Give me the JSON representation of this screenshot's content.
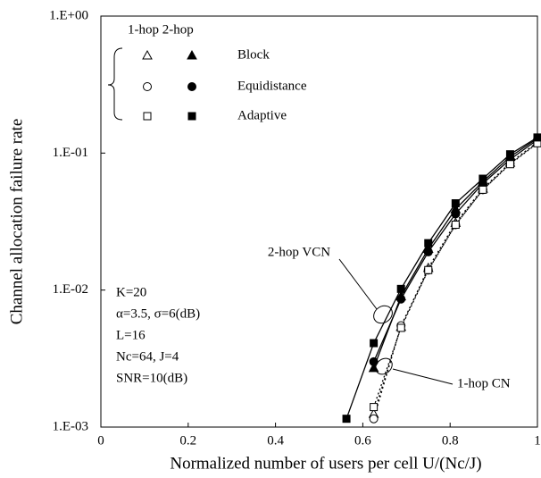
{
  "chart_data": {
    "type": "line",
    "yscale": "log",
    "xlabel": "Normalized number of users per cell U/(Nc/J)",
    "ylabel": "Channel allocation failure rate",
    "xlim": [
      0,
      1
    ],
    "xticks": [
      0,
      0.2,
      0.4,
      0.6,
      0.8,
      1
    ],
    "ylim": [
      0.001,
      1
    ],
    "yticks": [
      {
        "value": 1,
        "label": "1.E+00"
      },
      {
        "value": 0.1,
        "label": "1.E-01"
      },
      {
        "value": 0.01,
        "label": "1.E-02"
      },
      {
        "value": 0.001,
        "label": "1.E-03"
      }
    ],
    "legend_header": "1-hop 2-hop",
    "x": [
      0.5625,
      0.625,
      0.6875,
      0.75,
      0.8125,
      0.875,
      0.9375,
      1
    ],
    "series": [
      {
        "name": "Block",
        "marker": "triangle",
        "color": "#000",
        "one_hop": [
          null,
          0.00125,
          0.0054,
          0.0145,
          0.031,
          0.055,
          0.085,
          0.12
        ],
        "two_hop": [
          null,
          0.0027,
          0.009,
          0.02,
          0.039,
          0.062,
          0.094,
          0.128
        ]
      },
      {
        "name": "Equidistance",
        "marker": "circle",
        "color": "#000",
        "one_hop": [
          null,
          0.00115,
          0.0055,
          0.014,
          0.03,
          0.054,
          0.084,
          0.119
        ],
        "two_hop": [
          null,
          0.003,
          0.0086,
          0.019,
          0.036,
          0.06,
          0.09,
          0.125
        ]
      },
      {
        "name": "Adaptive",
        "marker": "square",
        "color": "#000",
        "one_hop": [
          null,
          0.0014,
          0.0053,
          0.014,
          0.03,
          0.054,
          0.083,
          0.118
        ],
        "two_hop": [
          0.00115,
          0.0041,
          0.0102,
          0.022,
          0.043,
          0.065,
          0.098,
          0.13
        ]
      }
    ],
    "annotations": [
      "2-hop VCN",
      "1-hop CN"
    ],
    "parameters": [
      "K=20",
      "α=3.5,   σ=6(dB)",
      "L=16",
      "Nc=64,          J=4",
      "SNR=10(dB)"
    ]
  }
}
